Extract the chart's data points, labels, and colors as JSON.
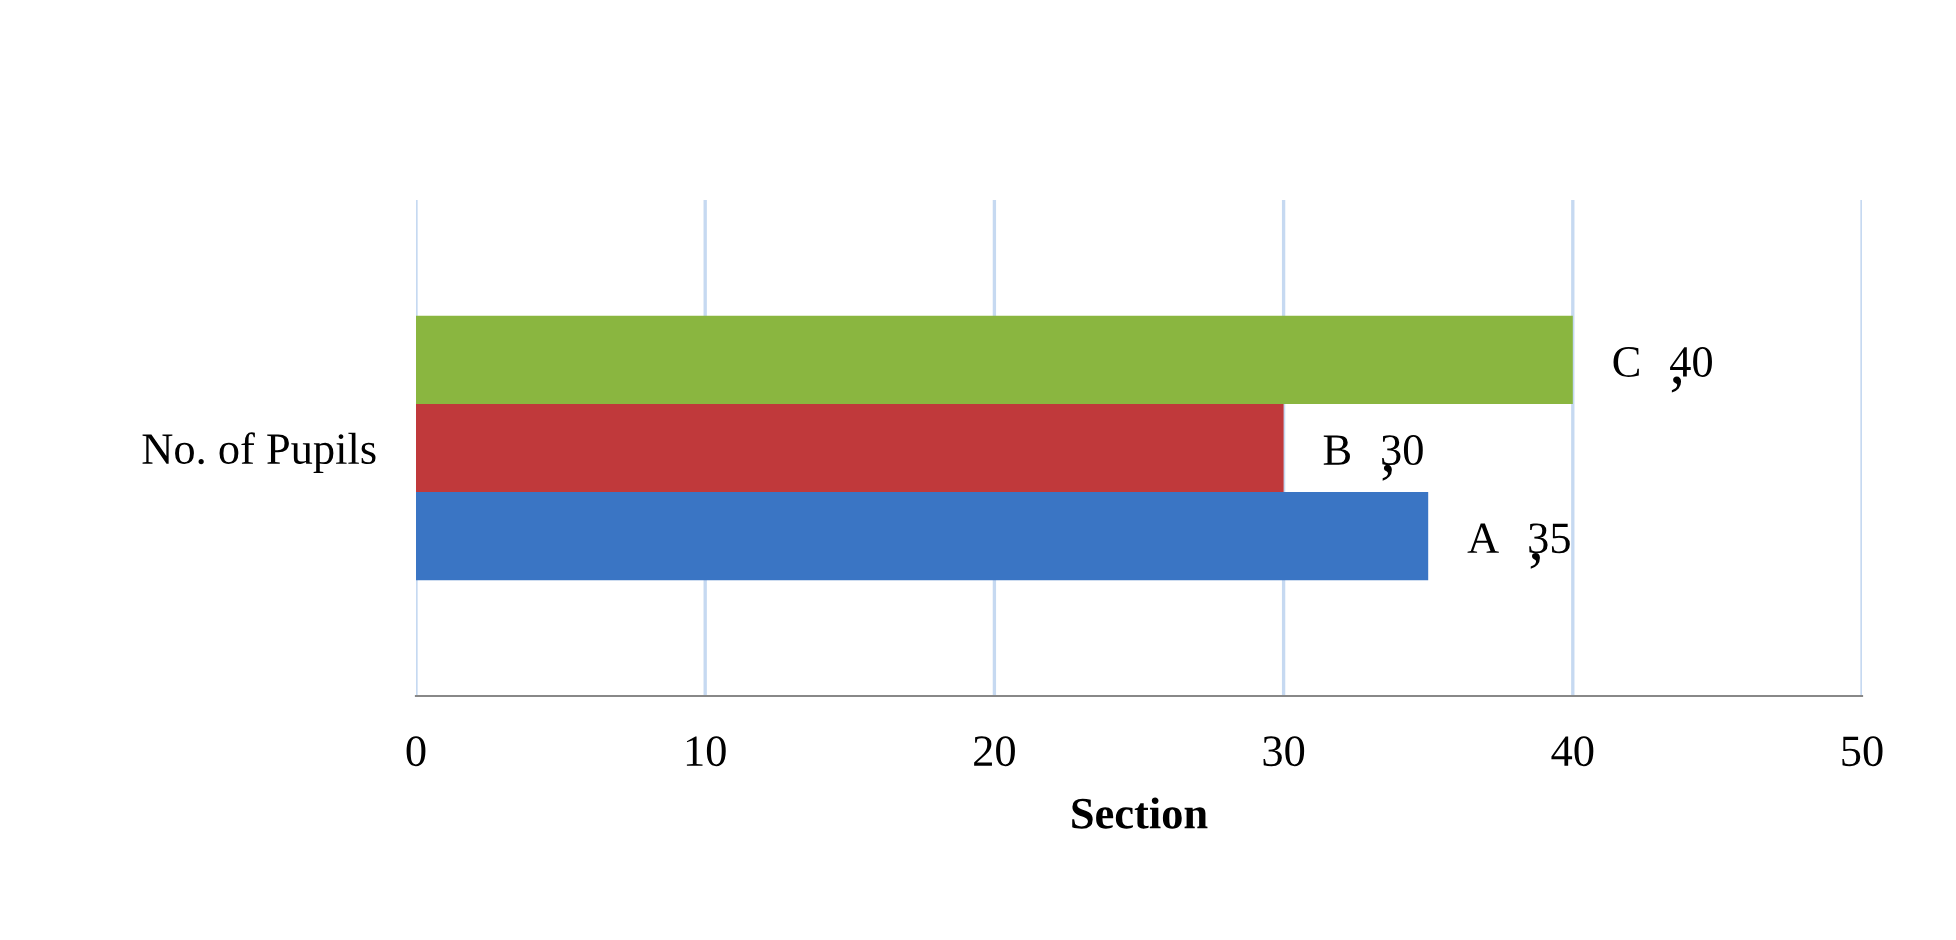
{
  "chart_data": {
    "type": "bar",
    "orientation": "horizontal",
    "xlabel": "Section",
    "categories": [
      "No. of Pupils"
    ],
    "series": [
      {
        "name": "A",
        "color": "#3a75c4",
        "values": [
          35
        ]
      },
      {
        "name": "B",
        "color": "#c0393b",
        "values": [
          30
        ]
      },
      {
        "name": "C",
        "color": "#8ab640",
        "values": [
          40
        ]
      }
    ],
    "data_labels": true,
    "xlim": [
      0,
      50
    ],
    "xticks": [
      0,
      10,
      20,
      30,
      40,
      50
    ],
    "grid": "x",
    "legend": false
  }
}
